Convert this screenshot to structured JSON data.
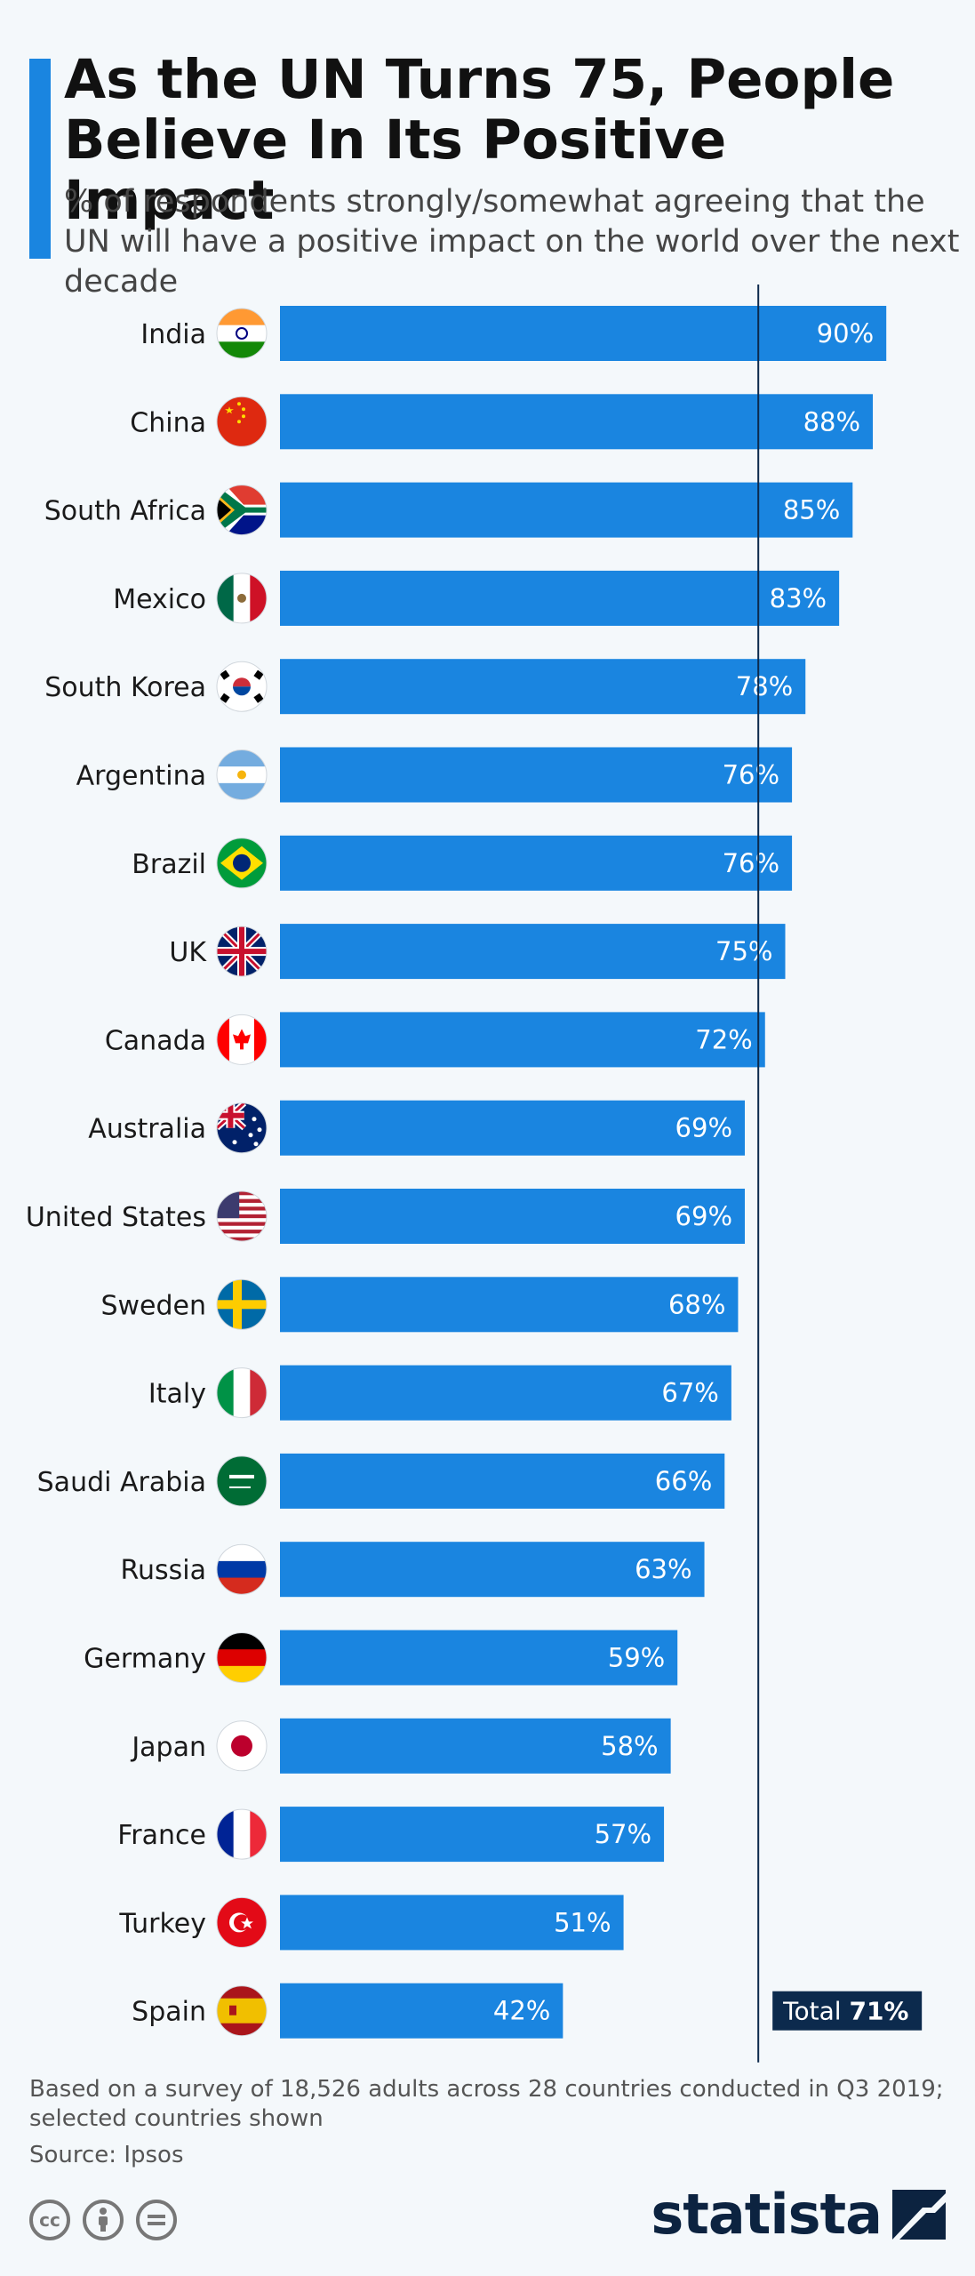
{
  "header": {
    "title": "As the UN Turns 75, People Believe In Its Positive Impact",
    "subtitle": "% of respondents strongly/somewhat agreeing that the UN will have a positive impact on the world over the next decade"
  },
  "colors": {
    "bar": "#1a85e0",
    "total_line": "#0c2a4d",
    "total_box": "#0c2a4d",
    "background": "#f4f8fb"
  },
  "chart_data": {
    "type": "bar",
    "orientation": "horizontal",
    "categories": [
      "India",
      "China",
      "South Africa",
      "Mexico",
      "South Korea",
      "Argentina",
      "Brazil",
      "UK",
      "Canada",
      "Australia",
      "United States",
      "Sweden",
      "Italy",
      "Saudi Arabia",
      "Russia",
      "Germany",
      "Japan",
      "France",
      "Turkey",
      "Spain"
    ],
    "values": [
      90,
      88,
      85,
      83,
      78,
      76,
      76,
      75,
      72,
      69,
      69,
      68,
      67,
      66,
      63,
      59,
      58,
      57,
      51,
      42
    ],
    "value_labels": [
      "90%",
      "88%",
      "85%",
      "83%",
      "78%",
      "76%",
      "76%",
      "75%",
      "72%",
      "69%",
      "69%",
      "68%",
      "67%",
      "66%",
      "63%",
      "59%",
      "58%",
      "57%",
      "51%",
      "42%"
    ],
    "flag_icons": [
      "flag-india-icon",
      "flag-china-icon",
      "flag-south-africa-icon",
      "flag-mexico-icon",
      "flag-south-korea-icon",
      "flag-argentina-icon",
      "flag-brazil-icon",
      "flag-uk-icon",
      "flag-canada-icon",
      "flag-australia-icon",
      "flag-united-states-icon",
      "flag-sweden-icon",
      "flag-italy-icon",
      "flag-saudi-arabia-icon",
      "flag-russia-icon",
      "flag-germany-icon",
      "flag-japan-icon",
      "flag-france-icon",
      "flag-turkey-icon",
      "flag-spain-icon"
    ],
    "reference_line": {
      "label_prefix": "Total ",
      "label_value": "71%",
      "value": 71
    },
    "xlim": [
      0,
      100
    ],
    "xlabel": "",
    "ylabel": "",
    "grid": false
  },
  "footer": {
    "note": "Based on a survey of 18,526 adults across 28 countries conducted in Q3 2019; selected countries shown",
    "source": "Source: Ipsos",
    "brand": "statista",
    "license_icons": [
      "cc-icon",
      "attribution-icon",
      "no-derivatives-icon"
    ]
  }
}
